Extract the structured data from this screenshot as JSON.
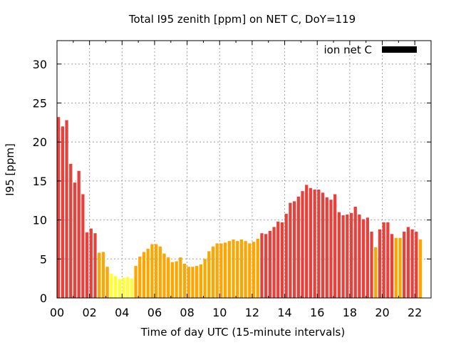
{
  "chart_data": {
    "type": "bar",
    "title": "Total I95 zenith [ppm] on NET C, DoY=119",
    "xlabel": "Time of day UTC (15-minute intervals)",
    "ylabel": "I95 [ppm]",
    "legend": {
      "label": "ion net C",
      "color": "#000000",
      "position": "top-right"
    },
    "grid": true,
    "xlim": [
      0,
      23
    ],
    "ylim": [
      0,
      33
    ],
    "x_ticks": [
      "00",
      "02",
      "04",
      "06",
      "08",
      "10",
      "12",
      "14",
      "16",
      "18",
      "20",
      "22"
    ],
    "y_ticks": [
      0,
      5,
      10,
      15,
      20,
      25,
      30
    ],
    "interval_hours": 0.25,
    "color_scale": {
      "high": "#e8413c",
      "medium": "#ffa500",
      "low": "#ffff33"
    },
    "values": [
      23.2,
      22.0,
      22.8,
      17.2,
      14.8,
      16.3,
      13.3,
      8.4,
      8.9,
      8.3,
      5.8,
      5.9,
      4.0,
      3.1,
      2.8,
      2.4,
      2.6,
      2.7,
      2.5,
      4.1,
      5.3,
      5.9,
      6.3,
      6.9,
      6.9,
      6.6,
      5.7,
      5.2,
      4.6,
      4.7,
      5.2,
      4.4,
      4.0,
      4.0,
      4.1,
      4.3,
      5.0,
      6.0,
      6.6,
      7.0,
      7.0,
      7.1,
      7.3,
      7.5,
      7.3,
      7.5,
      7.3,
      7.0,
      7.2,
      7.6,
      8.3,
      8.2,
      8.6,
      9.1,
      9.8,
      9.7,
      10.8,
      12.2,
      12.4,
      13.0,
      13.7,
      14.5,
      14.1,
      13.9,
      13.9,
      13.5,
      12.9,
      12.6,
      13.3,
      11.0,
      10.6,
      10.7,
      10.9,
      11.7,
      10.7,
      10.1,
      10.3,
      8.5,
      6.5,
      8.8,
      9.7,
      9.7,
      8.2,
      7.7,
      7.7,
      8.5,
      9.1,
      8.8,
      8.5,
      7.5
    ],
    "levels": [
      "high",
      "high",
      "high",
      "high",
      "high",
      "high",
      "high",
      "high",
      "high",
      "high",
      "medium",
      "medium",
      "medium",
      "low",
      "low",
      "low",
      "low",
      "low",
      "low",
      "medium",
      "medium",
      "medium",
      "medium",
      "medium",
      "medium",
      "medium",
      "medium",
      "medium",
      "medium",
      "medium",
      "medium",
      "medium",
      "medium",
      "medium",
      "medium",
      "medium",
      "medium",
      "medium",
      "medium",
      "medium",
      "medium",
      "medium",
      "medium",
      "medium",
      "medium",
      "medium",
      "medium",
      "medium",
      "medium",
      "medium",
      "high",
      "high",
      "high",
      "high",
      "high",
      "high",
      "high",
      "high",
      "high",
      "high",
      "high",
      "high",
      "high",
      "high",
      "high",
      "high",
      "high",
      "high",
      "high",
      "high",
      "high",
      "high",
      "high",
      "high",
      "high",
      "high",
      "high",
      "high",
      "medium",
      "high",
      "high",
      "high",
      "high",
      "medium",
      "medium",
      "high",
      "high",
      "high",
      "high",
      "medium"
    ]
  }
}
